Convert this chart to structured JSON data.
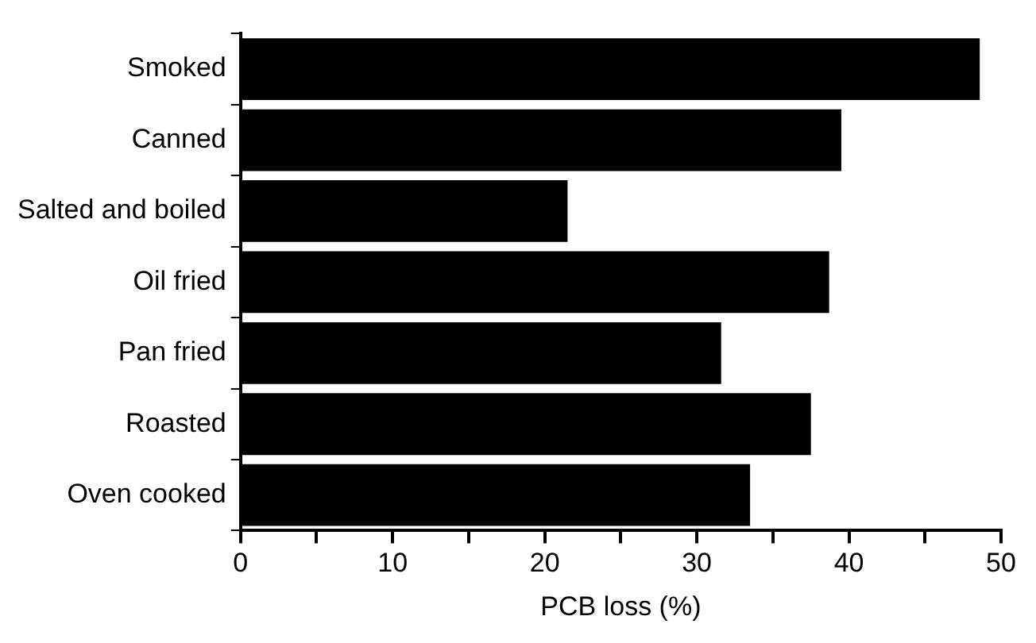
{
  "chart_data": {
    "type": "bar",
    "orientation": "horizontal",
    "xlabel": "PCB loss (%)",
    "categories": [
      "Smoked",
      "Canned",
      "Salted and boiled",
      "Oil fried",
      "Pan fried",
      "Roasted",
      "Oven cooked"
    ],
    "values": [
      48.6,
      39.5,
      21.5,
      38.7,
      31.6,
      37.5,
      33.5
    ],
    "color": "#000000",
    "xlim": [
      0,
      50
    ],
    "xticks": [
      0,
      {
        "value": 5,
        "label": null
      },
      10,
      {
        "value": 15,
        "label": null
      },
      20,
      {
        "value": 25,
        "label": null
      },
      30,
      {
        "value": 35,
        "label": null
      },
      40,
      {
        "value": 45,
        "label": null
      },
      50
    ],
    "grid": false,
    "legend": false
  }
}
